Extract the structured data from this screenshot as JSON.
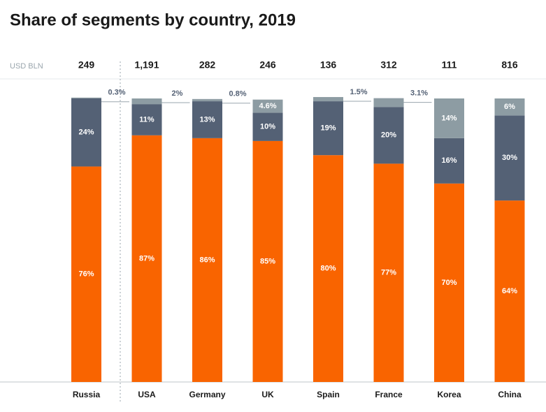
{
  "chart_data": {
    "type": "stacked_bar",
    "title": "Share of segments by country, 2019",
    "unit_label": "USD BLN",
    "categories": [
      "Russia",
      "USA",
      "Germany",
      "UK",
      "Spain",
      "France",
      "Korea",
      "China"
    ],
    "totals": {
      "values": [
        249,
        1191,
        282,
        246,
        136,
        312,
        111,
        816
      ],
      "value_labels": [
        "249",
        "1,191",
        "282",
        "246",
        "136",
        "312",
        "111",
        "816"
      ]
    },
    "ylim": [
      0,
      100
    ],
    "series": [
      {
        "color": "#f96400",
        "values": [
          76,
          87,
          86,
          85,
          80,
          77,
          70,
          64
        ],
        "value_labels": [
          "76%",
          "87%",
          "86%",
          "85%",
          "80%",
          "77%",
          "70%",
          "64%"
        ]
      },
      {
        "color": "#546175",
        "values": [
          24,
          11,
          13,
          10,
          19,
          20,
          16,
          30
        ],
        "value_labels": [
          "24%",
          "11%",
          "13%",
          "10%",
          "19%",
          "20%",
          "16%",
          "30%"
        ]
      },
      {
        "color": "#8d9ca3",
        "values": [
          0.3,
          2,
          0.8,
          4.6,
          1.5,
          3.1,
          14,
          6
        ],
        "value_labels": [
          "0.3%",
          "2%",
          "0.8%",
          "4.6%",
          "1.5%",
          "3.1%",
          "14%",
          "6%"
        ]
      }
    ]
  }
}
